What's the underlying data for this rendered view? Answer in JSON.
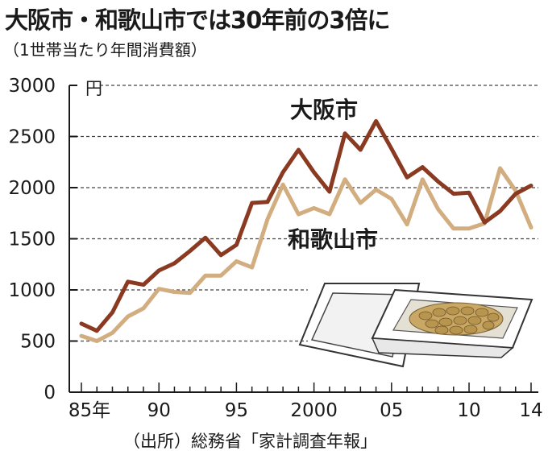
{
  "chart_data": {
    "type": "line",
    "title": "大阪市・和歌山市では30年前の3倍に",
    "subtitle": "（1世帯当たり年間消費額）",
    "unit_label": "円",
    "source": "（出所）総務省「家計調査年報」",
    "x": [
      1985,
      1986,
      1987,
      1988,
      1989,
      1990,
      1991,
      1992,
      1993,
      1994,
      1995,
      1996,
      1997,
      1998,
      1999,
      2000,
      2001,
      2002,
      2003,
      2004,
      2005,
      2006,
      2007,
      2008,
      2009,
      2010,
      2011,
      2012,
      2013,
      2014
    ],
    "x_tick_values": [
      1985,
      1990,
      1995,
      2000,
      2005,
      2010,
      2014
    ],
    "x_tick_labels": [
      "85年",
      "90",
      "95",
      "2000",
      "05",
      "10",
      "14"
    ],
    "y_ticks": [
      0,
      500,
      1000,
      1500,
      2000,
      2500,
      3000
    ],
    "y_tick_labels": [
      "0",
      "500",
      "1000",
      "1500",
      "2000",
      "2500",
      "3000"
    ],
    "ylim": [
      0,
      3000
    ],
    "xlim": [
      1985,
      2014
    ],
    "grid": "dashed horizontal",
    "series": [
      {
        "name": "大阪市",
        "color": "#8b3a22",
        "values": [
          670,
          600,
          780,
          1080,
          1050,
          1190,
          1260,
          1380,
          1510,
          1340,
          1440,
          1850,
          1860,
          2150,
          2370,
          2150,
          1960,
          2530,
          2370,
          2650,
          2380,
          2100,
          2200,
          2060,
          1940,
          1950,
          1660,
          1770,
          1940,
          2020
        ]
      },
      {
        "name": "和歌山市",
        "color": "#d2ad7f",
        "values": [
          550,
          500,
          580,
          740,
          820,
          1010,
          980,
          970,
          1140,
          1140,
          1280,
          1220,
          1690,
          2030,
          1740,
          1800,
          1740,
          2080,
          1850,
          1980,
          1890,
          1640,
          2080,
          1790,
          1600,
          1600,
          1650,
          2190,
          1970,
          1610
        ]
      }
    ]
  }
}
